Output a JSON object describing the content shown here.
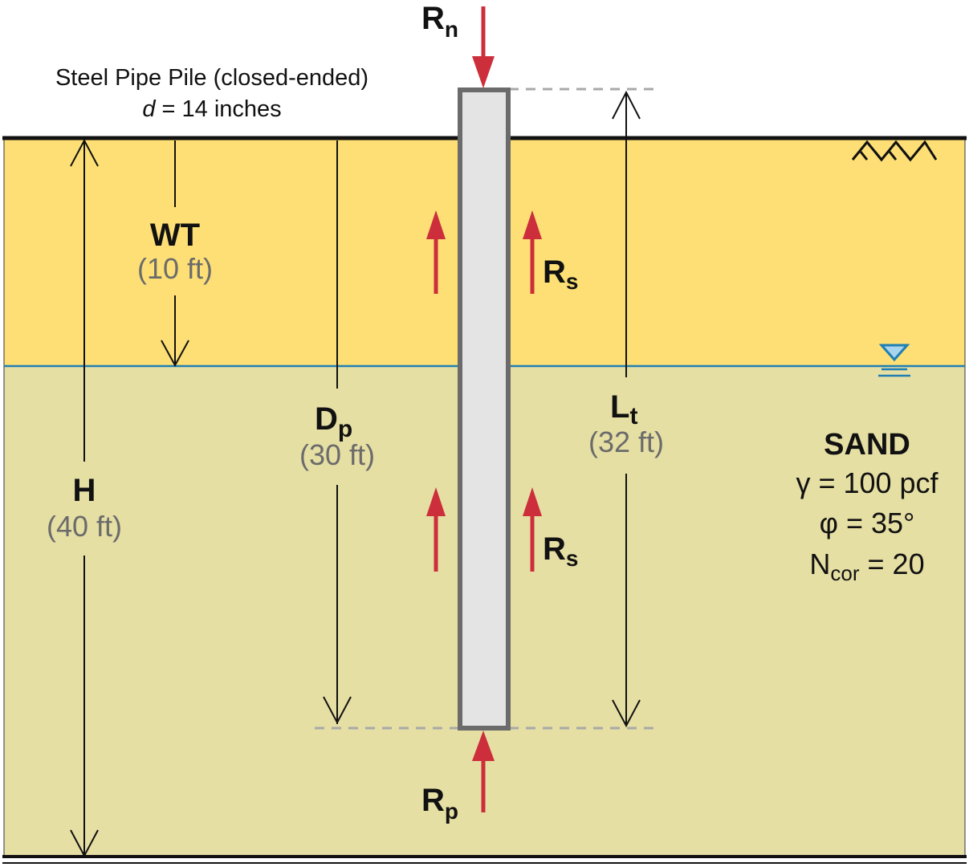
{
  "pile": {
    "title": "Steel Pipe Pile (closed-ended)",
    "d_symbol": "d",
    "d_value": " = 14 inches"
  },
  "loads": {
    "Rn_main": "R",
    "Rn_sub": "n",
    "Rs_main": "R",
    "Rs_sub": "s",
    "Rp_main": "R",
    "Rp_sub": "p"
  },
  "dims": {
    "wt_label": "WT",
    "wt_value": "(10 ft)",
    "dp_main": "D",
    "dp_sub": "p",
    "dp_value": "(30 ft)",
    "lt_main": "L",
    "lt_sub": "t",
    "lt_value": "(32 ft)",
    "h_label": "H",
    "h_value": "(40 ft)"
  },
  "soil": {
    "name": "SAND",
    "gamma": "γ = 100 pcf",
    "phi": "φ = 35°",
    "ncor_main": "N",
    "ncor_sub": "cor",
    "ncor_value": " = 20"
  },
  "colors": {
    "dry_sand": "#fddf75",
    "wet_sand": "#e6dfa4",
    "pile_fill": "#e4e4e4",
    "pile_edge": "#6b6b6b",
    "arrow_red": "#cc2e3c",
    "water_blue": "#1f7fb3"
  }
}
